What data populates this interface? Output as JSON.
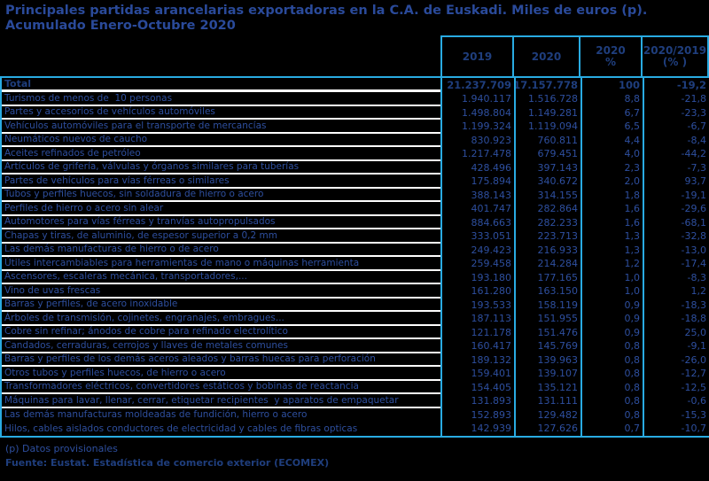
{
  "title": {
    "line1": "Principales partidas arancelarias exportadoras en la C.A. de Euskadi. Miles de euros (p).",
    "line2": "Acumulado Enero-Octubre 2020"
  },
  "table": {
    "columns": [
      {
        "label": "2019",
        "sub": ""
      },
      {
        "label": "2020",
        "sub": ""
      },
      {
        "label": "2020",
        "sub": "%"
      },
      {
        "label": "2020/2019",
        "sub": "(% )"
      }
    ],
    "total": {
      "label": "Total",
      "y2019": "21.237.709",
      "y2020": "17.157.778",
      "share2020": "100",
      "change": "-19,2"
    },
    "rows": [
      {
        "label": "Turismos de menos de  10 personas",
        "y2019": "1.940.117",
        "y2020": "1.516.728",
        "share2020": "8,8",
        "change": "-21,8"
      },
      {
        "label": "Partes y accesorios de vehículos automóviles",
        "y2019": "1.498.804",
        "y2020": "1.149.281",
        "share2020": "6,7",
        "change": "-23,3"
      },
      {
        "label": "Vehículos automóviles para el transporte de mercancías",
        "y2019": "1.199.324",
        "y2020": "1.119.094",
        "share2020": "6,5",
        "change": "-6,7"
      },
      {
        "label": "Neumáticos nuevos de caucho",
        "y2019": "830.923",
        "y2020": "760.811",
        "share2020": "4,4",
        "change": "-8,4"
      },
      {
        "label": "Aceites refinados de petróleo",
        "y2019": "1.217.478",
        "y2020": "679.451",
        "share2020": "4,0",
        "change": "-44,2"
      },
      {
        "label": "Artículos de grifería, válvulas y órganos similares para tuberías",
        "y2019": "428.496",
        "y2020": "397.143",
        "share2020": "2,3",
        "change": "-7,3"
      },
      {
        "label": "Partes de vehículos para vías férreas o similares",
        "y2019": "175.894",
        "y2020": "340.672",
        "share2020": "2,0",
        "change": "93,7"
      },
      {
        "label": "Tubos y perfiles huecos, sin soldadura de hierro o acero",
        "y2019": "388.143",
        "y2020": "314.155",
        "share2020": "1,8",
        "change": "-19,1"
      },
      {
        "label": "Perfiles de hierro o acero sin alear",
        "y2019": "401.747",
        "y2020": "282.864",
        "share2020": "1,6",
        "change": "-29,6"
      },
      {
        "label": "Automotores para vías férreas y tranvías autopropulsados",
        "y2019": "884.663",
        "y2020": "282.233",
        "share2020": "1,6",
        "change": "-68,1"
      },
      {
        "label": "Chapas y tiras, de aluminio, de espesor superior a 0,2 mm",
        "y2019": "333.051",
        "y2020": "223.713",
        "share2020": "1,3",
        "change": "-32,8"
      },
      {
        "label": "Las demás manufacturas de hierro o de acero",
        "y2019": "249.423",
        "y2020": "216.933",
        "share2020": "1,3",
        "change": "-13,0"
      },
      {
        "label": "Útiles intercambiables para herramientas de mano o máquinas herramienta",
        "y2019": "259.458",
        "y2020": "214.284",
        "share2020": "1,2",
        "change": "-17,4"
      },
      {
        "label": "Ascensores, escaleras mecánica, transportadores,...",
        "y2019": "193.180",
        "y2020": "177.165",
        "share2020": "1,0",
        "change": "-8,3"
      },
      {
        "label": "Vino de uvas frescas",
        "y2019": "161.280",
        "y2020": "163.150",
        "share2020": "1,0",
        "change": "1,2"
      },
      {
        "label": "Barras y perfiles, de acero inoxidable",
        "y2019": "193.533",
        "y2020": "158.119",
        "share2020": "0,9",
        "change": "-18,3"
      },
      {
        "label": "Árboles de transmisión, cojinetes, engranajes, embragues...",
        "y2019": "187.113",
        "y2020": "151.955",
        "share2020": "0,9",
        "change": "-18,8"
      },
      {
        "label": "Cobre sin refinar; ánodos de cobre para refinado electrolítico",
        "y2019": "121.178",
        "y2020": "151.476",
        "share2020": "0,9",
        "change": "25,0"
      },
      {
        "label": "Candados, cerraduras, cerrojos y llaves de metales comunes",
        "y2019": "160.417",
        "y2020": "145.769",
        "share2020": "0,8",
        "change": "-9,1"
      },
      {
        "label": "Barras y perfiles de los demás aceros aleados y barras huecas para perforación",
        "y2019": "189.132",
        "y2020": "139.963",
        "share2020": "0,8",
        "change": "-26,0"
      },
      {
        "label": "Otros tubos y perfiles huecos, de hierro o acero",
        "y2019": "159.401",
        "y2020": "139.107",
        "share2020": "0,8",
        "change": "-12,7"
      },
      {
        "label": "Transformadores eléctricos, convertidores estáticos y bobinas de reactancia",
        "y2019": "154.405",
        "y2020": "135.121",
        "share2020": "0,8",
        "change": "-12,5"
      },
      {
        "label": "Máquinas para lavar, llenar, cerrar, etiquetar recipientes  y aparatos de empaquetar",
        "y2019": "131.893",
        "y2020": "131.111",
        "share2020": "0,8",
        "change": "-0,6"
      },
      {
        "label": "Las demás manufacturas moldeadas de fundición, hierro o acero",
        "y2019": "152.893",
        "y2020": "129.482",
        "share2020": "0,8",
        "change": "-15,3"
      },
      {
        "label": "Hilos, cables aislados conductores de electricidad y cables de fibras opticas",
        "y2019": "142.939",
        "y2020": "127.626",
        "share2020": "0,7",
        "change": "-10,7"
      }
    ]
  },
  "footer": {
    "note": "(p) Datos provisionales",
    "source": "Fuente: Eustat. Estadística de comercio exterior (ECOMEX)"
  },
  "colors": {
    "background": "#000000",
    "text_regular": "#2e4f9f",
    "text_bold": "#1f3e7d",
    "title_blue": "#2a4a9a",
    "border_cyan": "#29abe2",
    "row_separator_white": "#ffffff"
  }
}
